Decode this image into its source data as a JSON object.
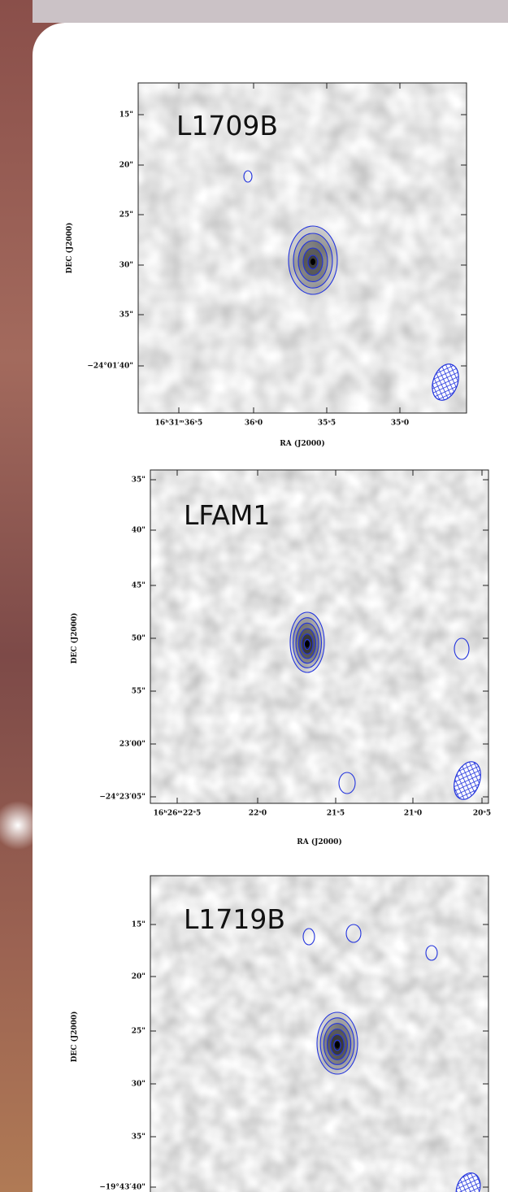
{
  "panels": [
    {
      "label": "L1709B",
      "ylabel": "DEC (J2000)",
      "xlabel": "RA (J2000)",
      "yticks": [
        "15\"",
        "20\"",
        "25\"",
        "30\"",
        "35\"",
        "−24°01′40\""
      ],
      "xticks": [
        "16ʰ31ᵐ36ˢ5",
        "36ˢ0",
        "35ˢ5",
        "35ˢ0"
      ]
    },
    {
      "label": "LFAM1",
      "ylabel": "DEC (J2000)",
      "xlabel": "RA (J2000)",
      "yticks": [
        "35\"",
        "40\"",
        "45\"",
        "50\"",
        "55\"",
        "23′00\"",
        "−24°23′05\""
      ],
      "xticks": [
        "16ʰ26ᵐ22ˢ5",
        "22ˢ0",
        "21ˢ5",
        "21ˢ0",
        "20ˢ5"
      ]
    },
    {
      "label": "L1719B",
      "ylabel": "DEC (J2000)",
      "yticks": [
        "15\"",
        "20\"",
        "25\"",
        "30\"",
        "35\"",
        "−19°43′40\""
      ]
    }
  ]
}
